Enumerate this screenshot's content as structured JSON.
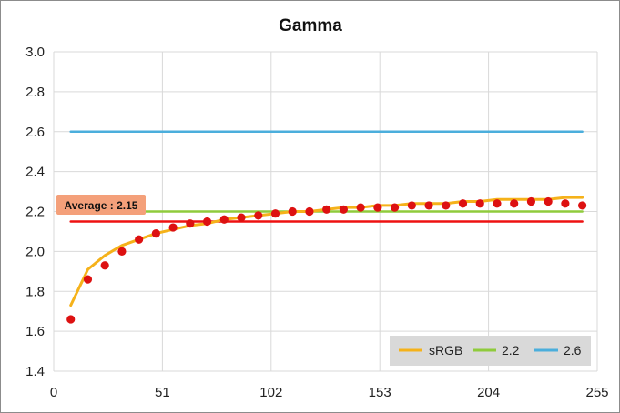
{
  "chart_data": {
    "type": "line",
    "title": "Gamma",
    "xlabel": "",
    "ylabel": "",
    "xlim": [
      0,
      255
    ],
    "ylim": [
      1.4,
      3.0
    ],
    "x_ticks": [
      "0",
      "51",
      "102",
      "153",
      "204",
      "255"
    ],
    "y_ticks": [
      "1.4",
      "1.6",
      "1.8",
      "2.0",
      "2.2",
      "2.4",
      "2.6",
      "2.8",
      "3.0"
    ],
    "grid": true,
    "legend_position": "bottom-right",
    "series": [
      {
        "name": "sRGB",
        "kind": "line",
        "color": "#F5B21A",
        "x": [
          8,
          16,
          24,
          32,
          40,
          48,
          56,
          64,
          72,
          80,
          88,
          96,
          104,
          112,
          120,
          128,
          136,
          144,
          152,
          160,
          168,
          176,
          184,
          192,
          200,
          208,
          216,
          224,
          232,
          240,
          248
        ],
        "values": [
          1.73,
          1.91,
          1.98,
          2.03,
          2.06,
          2.09,
          2.11,
          2.13,
          2.14,
          2.16,
          2.17,
          2.18,
          2.19,
          2.2,
          2.2,
          2.21,
          2.22,
          2.22,
          2.23,
          2.23,
          2.24,
          2.24,
          2.24,
          2.25,
          2.25,
          2.26,
          2.26,
          2.26,
          2.26,
          2.27,
          2.27
        ]
      },
      {
        "name": "2.2",
        "kind": "line",
        "color": "#8FCB3C",
        "x": [
          8,
          248
        ],
        "values": [
          2.2,
          2.2
        ]
      },
      {
        "name": "2.6",
        "kind": "line",
        "color": "#4BAEDC",
        "x": [
          8,
          248
        ],
        "values": [
          2.6,
          2.6
        ]
      },
      {
        "name": "",
        "kind": "line",
        "color": "#EE1111",
        "x": [
          8,
          248
        ],
        "values": [
          2.15,
          2.15
        ]
      },
      {
        "name": "",
        "kind": "scatter",
        "color": "#DD1111",
        "x": [
          8,
          16,
          24,
          32,
          40,
          48,
          56,
          64,
          72,
          80,
          88,
          96,
          104,
          112,
          120,
          128,
          136,
          144,
          152,
          160,
          168,
          176,
          184,
          192,
          200,
          208,
          216,
          224,
          232,
          240,
          248
        ],
        "values": [
          1.66,
          1.86,
          1.93,
          2.0,
          2.06,
          2.09,
          2.12,
          2.14,
          2.15,
          2.16,
          2.17,
          2.18,
          2.19,
          2.2,
          2.2,
          2.21,
          2.21,
          2.22,
          2.22,
          2.22,
          2.23,
          2.23,
          2.23,
          2.24,
          2.24,
          2.24,
          2.24,
          2.25,
          2.25,
          2.24,
          2.23
        ]
      }
    ],
    "annotation": {
      "text": "Average : 2.15",
      "value": 2.15,
      "background": "#F4A07A"
    }
  }
}
